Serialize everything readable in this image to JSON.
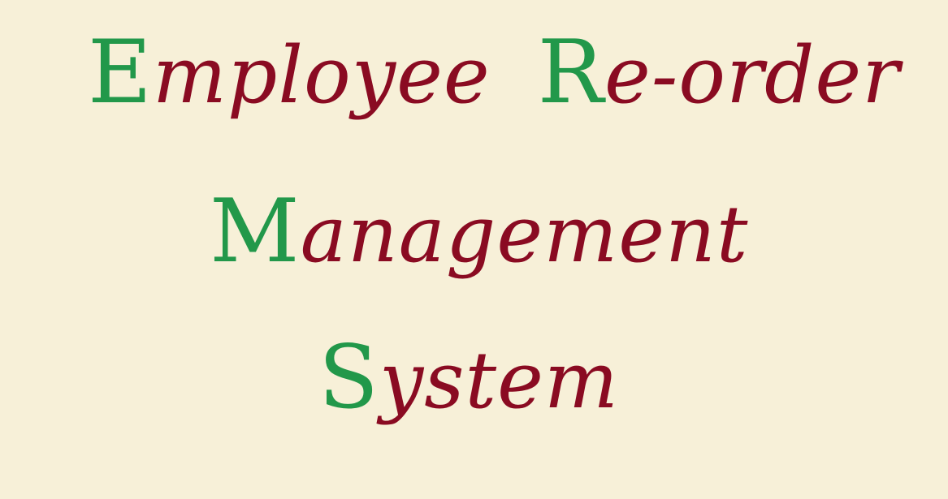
{
  "colors": {
    "background": "#f7f0d8",
    "initial": "#22984a",
    "text": "#8a0b22"
  },
  "title": {
    "line1": {
      "word1": {
        "initial": "E",
        "rest": "mployee"
      },
      "word2": {
        "initial": "R",
        "rest": "e-order"
      }
    },
    "line2": {
      "word1": {
        "initial": "M",
        "rest": "anagement"
      }
    },
    "line3": {
      "word1": {
        "initial": "S",
        "rest": "ystem"
      }
    }
  }
}
